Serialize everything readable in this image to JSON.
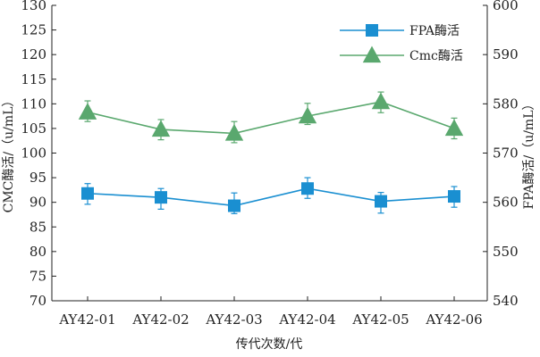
{
  "chart_data": {
    "type": "line",
    "categories": [
      "AY42-01",
      "AY42-02",
      "AY42-03",
      "AY42-04",
      "AY42-05",
      "AY42-06"
    ],
    "xlabel": "传代次数/代",
    "ylabel_left": "CMC酶活/（u/mL）",
    "ylabel_right": "FPA酶活/（u/mL）",
    "ylim_left": [
      70,
      130
    ],
    "yticks_left": [
      70,
      75,
      80,
      85,
      90,
      95,
      100,
      105,
      110,
      115,
      120,
      125,
      130
    ],
    "ylim_right": [
      540,
      600
    ],
    "yticks_right": [
      540,
      550,
      560,
      570,
      580,
      590,
      600
    ],
    "grid": false,
    "legend_position": "top-right",
    "series": [
      {
        "name": "FPA酶活",
        "axis": "right",
        "marker": "square",
        "color": "#1a8fd1",
        "values": [
          561.8,
          561.0,
          559.3,
          562.8,
          560.2,
          561.2
        ],
        "err_low": [
          2.2,
          2.4,
          1.6,
          2.0,
          2.4,
          2.2
        ],
        "err_high": [
          2.0,
          1.8,
          2.6,
          2.2,
          1.8,
          2.0
        ]
      },
      {
        "name": "Cmc酶活",
        "axis": "right",
        "marker": "triangle",
        "color": "#5aa86e",
        "values": [
          578.3,
          574.8,
          574.0,
          577.5,
          580.4,
          575.0
        ],
        "err_low": [
          1.9,
          2.1,
          1.9,
          1.7,
          2.2,
          2.1
        ],
        "err_high": [
          2.3,
          2.0,
          2.4,
          2.6,
          2.0,
          2.1
        ]
      }
    ]
  }
}
